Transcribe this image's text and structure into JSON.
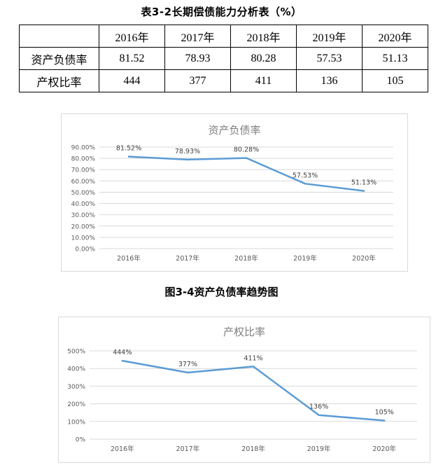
{
  "table": {
    "title": "表3-2长期偿债能力分析表（%）",
    "corner": "",
    "years": [
      "2016年",
      "2017年",
      "2018年",
      "2019年",
      "2020年"
    ],
    "rows": [
      {
        "label": "资产负债率",
        "values": [
          "81.52",
          "78.93",
          "80.28",
          "57.53",
          "51.13"
        ]
      },
      {
        "label": "产权比率",
        "values": [
          "444",
          "377",
          "411",
          "136",
          "105"
        ]
      }
    ]
  },
  "figure_caption": "图3-4资产负债率趋势图",
  "colors": {
    "line": "#5b9bd5",
    "grid": "#d9d9d9",
    "axis_text": "#595959",
    "title_text": "#7f7f7f"
  },
  "chart_data": [
    {
      "type": "line",
      "title": "资产负债率",
      "categories": [
        "2016年",
        "2017年",
        "2018年",
        "2019年",
        "2020年"
      ],
      "values": [
        81.52,
        78.93,
        80.28,
        57.53,
        51.13
      ],
      "data_labels": [
        "81.52%",
        "78.93%",
        "80.28%",
        "57.53%",
        "51.13%"
      ],
      "ylim": [
        0,
        90
      ],
      "yticks": [
        0,
        10,
        20,
        30,
        40,
        50,
        60,
        70,
        80,
        90
      ],
      "ytick_labels": [
        "0.00%",
        "10.00%",
        "20.00%",
        "30.00%",
        "40.00%",
        "50.00%",
        "60.00%",
        "70.00%",
        "80.00%",
        "90.00%"
      ],
      "grid": true,
      "legend": "none"
    },
    {
      "type": "line",
      "title": "产权比率",
      "categories": [
        "2016年",
        "2017年",
        "2018年",
        "2019年",
        "2020年"
      ],
      "values": [
        444,
        377,
        411,
        136,
        105
      ],
      "data_labels": [
        "444%",
        "377%",
        "411%",
        "136%",
        "105%"
      ],
      "ylim": [
        0,
        500
      ],
      "yticks": [
        0,
        100,
        200,
        300,
        400,
        500
      ],
      "ytick_labels": [
        "0%",
        "100%",
        "200%",
        "300%",
        "400%",
        "500%"
      ],
      "grid": true,
      "legend": "none"
    }
  ]
}
